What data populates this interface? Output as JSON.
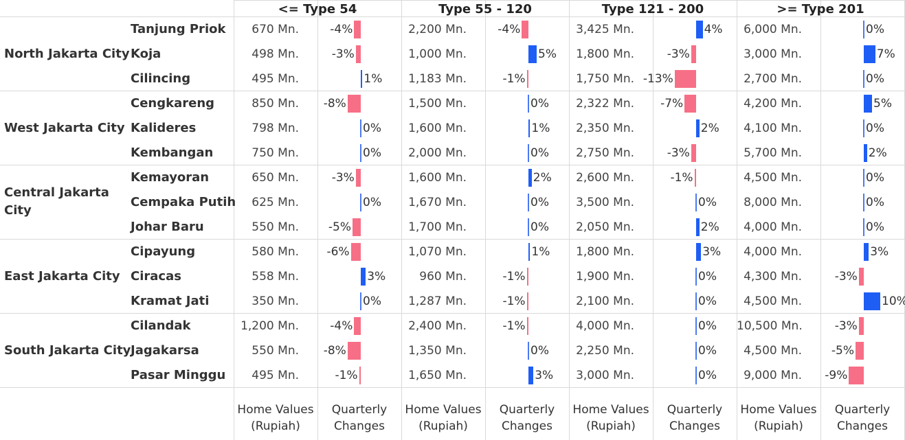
{
  "colors": {
    "positive": "#1f5ef5",
    "negative": "#f76f86",
    "zero": "#4b79f2",
    "grid": "#d9d9d9"
  },
  "column_headers": [
    "<= Type 54",
    "Type 55 - 120",
    "Type 121 - 200",
    ">= Type 201"
  ],
  "footer_labels": {
    "home_values": [
      "Home Values",
      "(Rupiah)"
    ],
    "quarterly_changes": [
      "Quarterly",
      "Changes"
    ]
  },
  "chart_data": {
    "type": "table",
    "measures": [
      "Home Values (Rupiah)",
      "Quarterly Changes"
    ],
    "types": [
      "<= Type 54",
      "Type 55 - 120",
      "Type 121 - 200",
      ">= Type 201"
    ],
    "regions": [
      {
        "name": "North Jakarta City",
        "rows": [
          {
            "sub": "Tanjung Priok",
            "values": [
              "670 Mn.",
              "2,200 Mn.",
              "3,425 Mn.",
              "6,000 Mn."
            ],
            "changes": [
              -4,
              -4,
              4,
              0
            ]
          },
          {
            "sub": "Koja",
            "values": [
              "498 Mn.",
              "1,000 Mn.",
              "1,800 Mn.",
              "3,000 Mn."
            ],
            "changes": [
              -3,
              5,
              -3,
              7
            ]
          },
          {
            "sub": "Cilincing",
            "values": [
              "495 Mn.",
              "1,183 Mn.",
              "1,750 Mn.",
              "2,700 Mn."
            ],
            "changes": [
              1,
              -1,
              -13,
              0
            ]
          }
        ]
      },
      {
        "name": "West Jakarta City",
        "rows": [
          {
            "sub": "Cengkareng",
            "values": [
              "850 Mn.",
              "1,500 Mn.",
              "2,322 Mn.",
              "4,200 Mn."
            ],
            "changes": [
              -8,
              0,
              -7,
              5
            ]
          },
          {
            "sub": "Kalideres",
            "values": [
              "798 Mn.",
              "1,600 Mn.",
              "2,350 Mn.",
              "4,100 Mn."
            ],
            "changes": [
              0,
              1,
              2,
              0
            ]
          },
          {
            "sub": "Kembangan",
            "values": [
              "750 Mn.",
              "2,000 Mn.",
              "2,750 Mn.",
              "5,700 Mn."
            ],
            "changes": [
              0,
              0,
              -3,
              2
            ]
          }
        ]
      },
      {
        "name": "Central Jakarta City",
        "rows": [
          {
            "sub": "Kemayoran",
            "values": [
              "650 Mn.",
              "1,600 Mn.",
              "2,600 Mn.",
              "4,500 Mn."
            ],
            "changes": [
              -3,
              2,
              -1,
              0
            ]
          },
          {
            "sub": "Cempaka Putih",
            "values": [
              "625 Mn.",
              "1,670 Mn.",
              "3,500 Mn.",
              "8,000 Mn."
            ],
            "changes": [
              0,
              0,
              0,
              0
            ]
          },
          {
            "sub": "Johar Baru",
            "values": [
              "550 Mn.",
              "1,700 Mn.",
              "2,050 Mn.",
              "4,000 Mn."
            ],
            "changes": [
              -5,
              0,
              2,
              0
            ]
          }
        ]
      },
      {
        "name": "East Jakarta City",
        "rows": [
          {
            "sub": "Cipayung",
            "values": [
              "580 Mn.",
              "1,070 Mn.",
              "1,800 Mn.",
              "4,000 Mn."
            ],
            "changes": [
              -6,
              1,
              3,
              3
            ]
          },
          {
            "sub": "Ciracas",
            "values": [
              "558 Mn.",
              "960 Mn.",
              "1,900 Mn.",
              "4,300 Mn."
            ],
            "changes": [
              3,
              -1,
              0,
              -3
            ]
          },
          {
            "sub": "Kramat Jati",
            "values": [
              "350 Mn.",
              "1,287 Mn.",
              "2,100 Mn.",
              "4,500 Mn."
            ],
            "changes": [
              0,
              -1,
              0,
              10
            ]
          }
        ]
      },
      {
        "name": "South Jakarta City",
        "rows": [
          {
            "sub": "Cilandak",
            "values": [
              "1,200 Mn.",
              "2,400 Mn.",
              "4,000 Mn.",
              "10,500 Mn."
            ],
            "changes": [
              -4,
              -1,
              0,
              -3
            ]
          },
          {
            "sub": "Jagakarsa",
            "values": [
              "550 Mn.",
              "1,350 Mn.",
              "2,250 Mn.",
              "4,500 Mn."
            ],
            "changes": [
              -8,
              0,
              0,
              -5
            ]
          },
          {
            "sub": "Pasar Minggu",
            "values": [
              "495 Mn.",
              "1,650 Mn.",
              "3,000 Mn.",
              "9,000 Mn."
            ],
            "changes": [
              -1,
              3,
              0,
              -9
            ]
          }
        ]
      }
    ]
  }
}
